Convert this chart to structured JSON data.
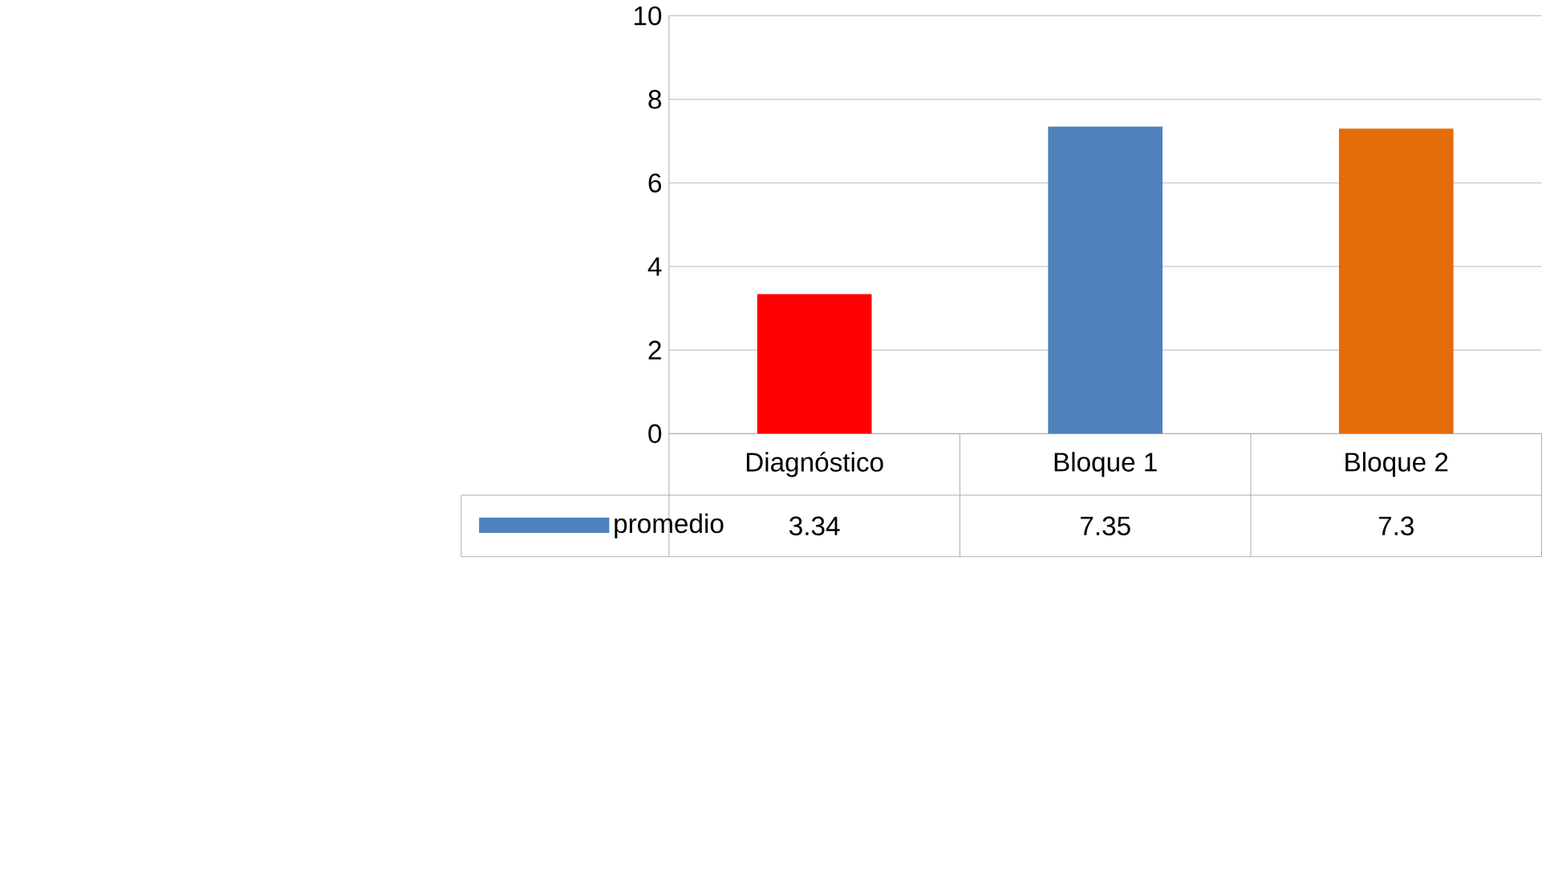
{
  "chart_data": {
    "type": "bar",
    "categories": [
      "Diagnóstico",
      "Bloque 1",
      "Bloque 2"
    ],
    "series": [
      {
        "name": "promedio",
        "color": "#4f81bd",
        "colors": [
          "#ff0000",
          "#4f81bd",
          "#e46c0a"
        ],
        "values": [
          3.34,
          7.35,
          7.3
        ]
      }
    ],
    "ylim": [
      0,
      10
    ],
    "yticks": [
      0,
      2,
      4,
      6,
      8,
      10
    ],
    "grid": "y",
    "legend": "bottom",
    "data_labels": true
  }
}
